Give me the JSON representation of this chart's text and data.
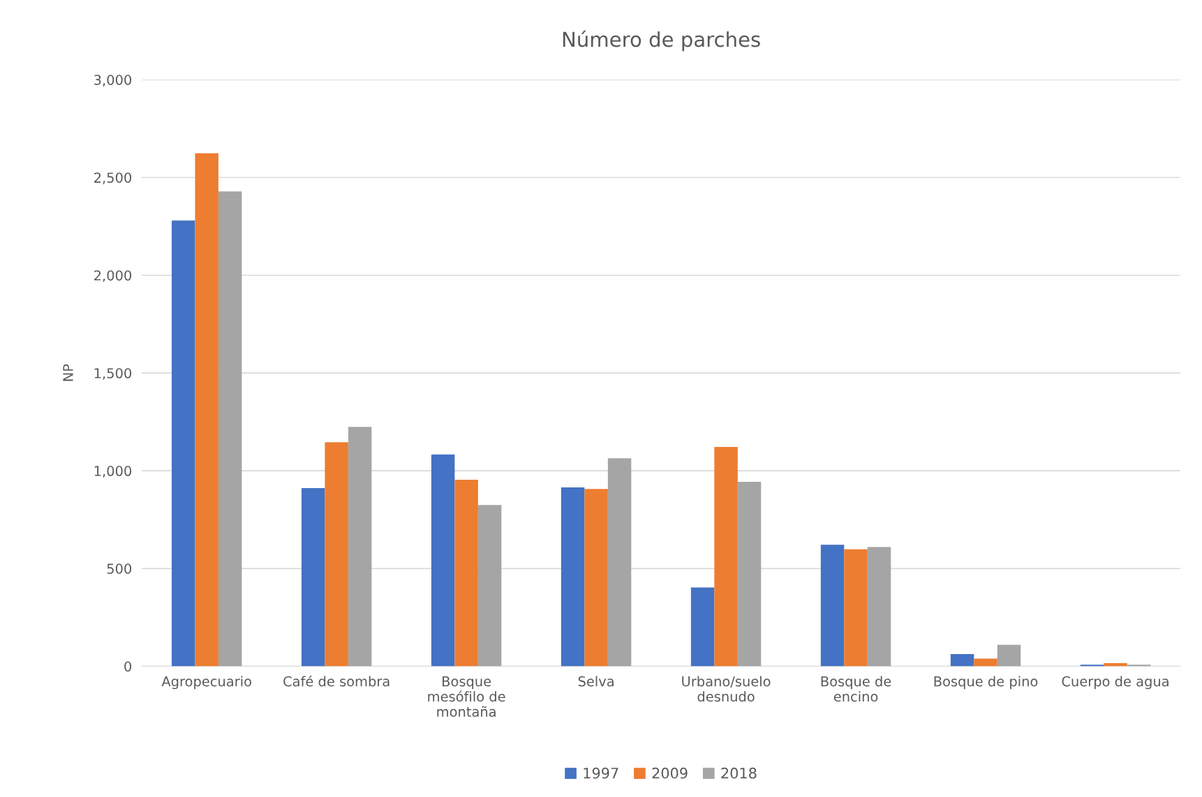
{
  "chart_data": {
    "type": "bar",
    "title": "Número de parches",
    "ylabel": "NP",
    "categories": [
      "Agropecuario",
      "Café de sombra",
      "Bosque mesófilo de montaña",
      "Selva",
      "Urbano/suelo desnudo",
      "Bosque de encino",
      "Bosque de pino",
      "Cuerpo de agua"
    ],
    "series": [
      {
        "name": "1997",
        "color": "#4472c4",
        "values": [
          2280,
          911,
          1083,
          915,
          403,
          622,
          63,
          8
        ]
      },
      {
        "name": "2009",
        "color": "#ed7d31",
        "values": [
          2624,
          1146,
          954,
          907,
          1122,
          598,
          39,
          16
        ]
      },
      {
        "name": "2018",
        "color": "#a5a5a5",
        "values": [
          2429,
          1224,
          825,
          1064,
          943,
          610,
          110,
          8
        ]
      }
    ],
    "ylim": [
      0,
      3000
    ],
    "yticks": [
      {
        "value": 0,
        "label": "0"
      },
      {
        "value": 500,
        "label": "500"
      },
      {
        "value": 1000,
        "label": "1,000"
      },
      {
        "value": 1500,
        "label": "1,500"
      },
      {
        "value": 2000,
        "label": "2,000"
      },
      {
        "value": 2500,
        "label": "2,500"
      },
      {
        "value": 3000,
        "label": "3,000"
      }
    ],
    "grid": "y",
    "legend": "bottom"
  }
}
